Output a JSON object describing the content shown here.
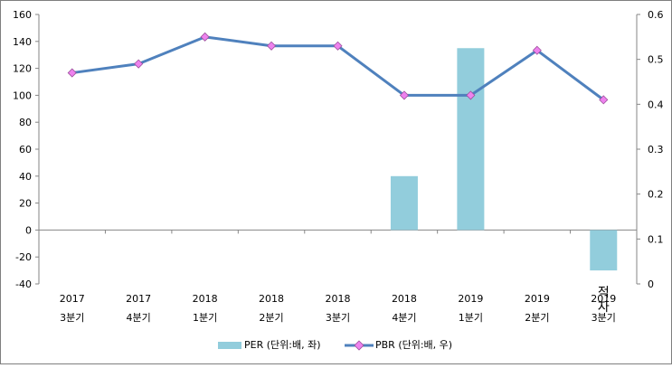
{
  "chart_data": {
    "type": "bar",
    "categories": [
      {
        "year": "2017",
        "quarter": "3분기"
      },
      {
        "year": "2017",
        "quarter": "4분기"
      },
      {
        "year": "2018",
        "quarter": "1분기"
      },
      {
        "year": "2018",
        "quarter": "2분기"
      },
      {
        "year": "2018",
        "quarter": "3분기"
      },
      {
        "year": "2018",
        "quarter": "4분기"
      },
      {
        "year": "2019",
        "quarter": "1분기"
      },
      {
        "year": "2019",
        "quarter": "2분기"
      },
      {
        "year": "2019",
        "quarter": "3분기"
      }
    ],
    "series": [
      {
        "name": "PER (단위:배, 좌)",
        "type": "bar",
        "axis": "left",
        "color": "#92cddc",
        "values": [
          null,
          null,
          null,
          null,
          null,
          40,
          135,
          null,
          -30
        ]
      },
      {
        "name": "PBR (단위:배, 우)",
        "type": "line",
        "axis": "right",
        "color": "#4f81bd",
        "marker_color": "#ee82ee",
        "values": [
          0.47,
          0.49,
          0.55,
          0.53,
          0.53,
          0.42,
          0.42,
          0.52,
          0.41
        ]
      }
    ],
    "y_left": {
      "min": -40,
      "max": 160,
      "ticks": [
        "160",
        "140",
        "120",
        "100",
        "80",
        "60",
        "40",
        "20",
        "0",
        "-20",
        "-40"
      ]
    },
    "y_right": {
      "min": 0,
      "max": 0.6,
      "ticks": [
        "0.6",
        "0.5",
        "0.4",
        "0.3",
        "0.2",
        "0.1",
        "0"
      ]
    },
    "annotations": [
      {
        "text": "적자",
        "category_index": 8
      }
    ],
    "legend": {
      "placement": "bottom"
    },
    "grid": false,
    "title": "",
    "xlabel": "",
    "ylabel": ""
  }
}
